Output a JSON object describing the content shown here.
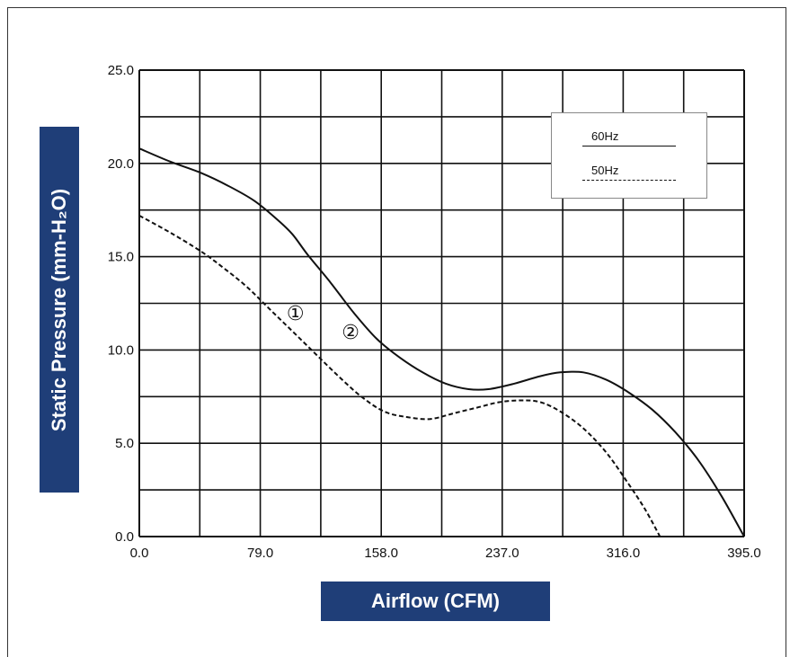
{
  "chart_data": {
    "type": "line",
    "title": "",
    "xlabel": "Airflow (CFM)",
    "ylabel": "Static Pressure (mm-H₂O)",
    "xlim": [
      0,
      395
    ],
    "ylim": [
      0,
      25
    ],
    "x_ticks": [
      "0.0",
      "79.0",
      "158.0",
      "237.0",
      "316.0",
      "395.0"
    ],
    "y_ticks": [
      "0.0",
      "5.0",
      "10.0",
      "15.0",
      "20.0",
      "25.0"
    ],
    "grid": true,
    "legend_position": "top-right",
    "series": [
      {
        "name": "60Hz",
        "style": "solid",
        "annotation": "②",
        "x": [
          0,
          20,
          40,
          58,
          75,
          90,
          100,
          110,
          125,
          140,
          155,
          170,
          185,
          200,
          215,
          228,
          245,
          262,
          275,
          290,
          305,
          320,
          335,
          350,
          365,
          380,
          395
        ],
        "y": [
          20.8,
          20.1,
          19.5,
          18.8,
          18.0,
          17.0,
          16.2,
          15.1,
          13.6,
          12.0,
          10.6,
          9.6,
          8.8,
          8.2,
          7.9,
          7.9,
          8.2,
          8.6,
          8.8,
          8.8,
          8.4,
          7.7,
          6.8,
          5.6,
          4.1,
          2.2,
          0.0
        ]
      },
      {
        "name": "50Hz",
        "style": "dashed",
        "annotation": "①",
        "x": [
          0,
          20,
          40,
          55,
          70,
          85,
          100,
          115,
          130,
          145,
          160,
          175,
          190,
          205,
          220,
          235,
          250,
          262,
          275,
          290,
          305,
          318,
          330,
          340
        ],
        "y": [
          17.2,
          16.3,
          15.3,
          14.4,
          13.4,
          12.2,
          11.0,
          9.8,
          8.6,
          7.5,
          6.7,
          6.4,
          6.3,
          6.6,
          6.9,
          7.2,
          7.3,
          7.2,
          6.7,
          5.8,
          4.5,
          3.0,
          1.5,
          0.0
        ]
      }
    ]
  }
}
